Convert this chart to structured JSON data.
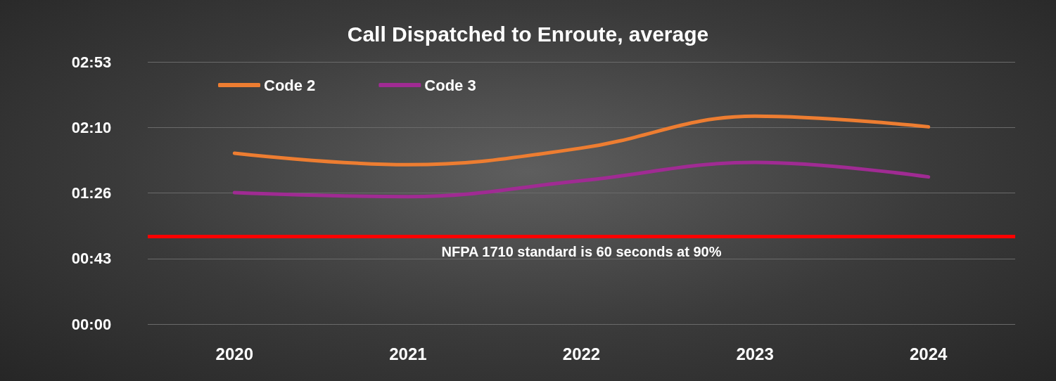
{
  "chart_data": {
    "type": "line",
    "title": "Call Dispatched to Enroute, average",
    "categories": [
      "2020",
      "2021",
      "2022",
      "2023",
      "2024"
    ],
    "series": [
      {
        "name": "Code 2",
        "color": "#ed7d31",
        "values": [
          112.6,
          105,
          116,
          137,
          130
        ]
      },
      {
        "name": "Code 3",
        "color": "#a02b93",
        "values": [
          86.6,
          84,
          94.5,
          106.5,
          97
        ]
      }
    ],
    "ylim": [
      0,
      172.8
    ],
    "yticks": [
      {
        "value": 0,
        "label": "00:00"
      },
      {
        "value": 43.2,
        "label": "00:43"
      },
      {
        "value": 86.4,
        "label": "01:26"
      },
      {
        "value": 129.6,
        "label": "02:10"
      },
      {
        "value": 172.8,
        "label": "02:53"
      }
    ],
    "ref_lines": [
      {
        "axis": "y",
        "value": 58,
        "label": "NFPA 1710 standard is 60 seconds at 90%",
        "color": "#ff0000",
        "line_style": "solid"
      }
    ],
    "grid": "y",
    "legend": "top left",
    "marker": "none",
    "line_style": "solid"
  }
}
